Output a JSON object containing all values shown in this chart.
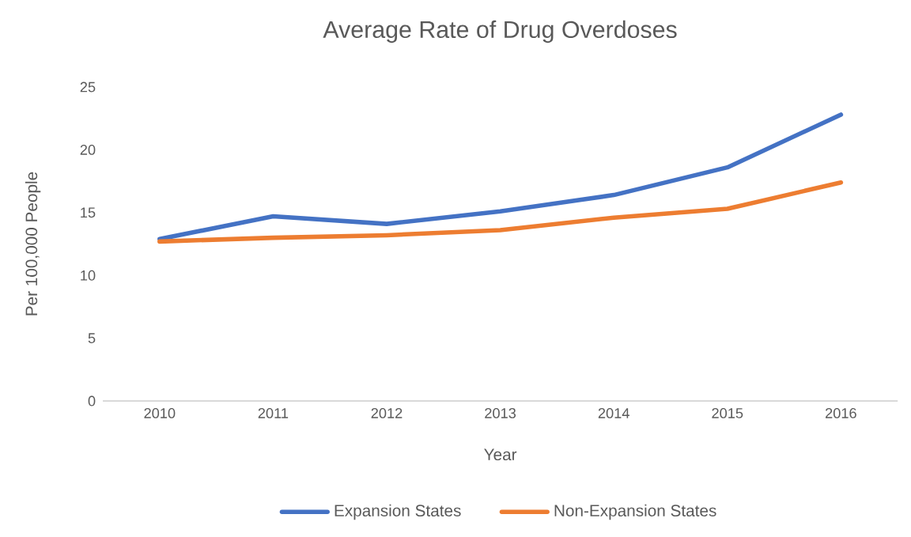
{
  "chart_data": {
    "type": "line",
    "title": "Average Rate of Drug Overdoses",
    "xlabel": "Year",
    "ylabel": "Per 100,000 People",
    "categories": [
      "2010",
      "2011",
      "2012",
      "2013",
      "2014",
      "2015",
      "2016"
    ],
    "series": [
      {
        "name": "Expansion States",
        "color": "#4472c4",
        "values": [
          12.9,
          14.7,
          14.1,
          15.1,
          16.4,
          18.6,
          22.8
        ]
      },
      {
        "name": "Non-Expansion States",
        "color": "#ed7d31",
        "values": [
          12.7,
          13.0,
          13.2,
          13.6,
          14.6,
          15.3,
          17.4
        ]
      }
    ],
    "ylim": [
      0,
      25
    ],
    "yticks": [
      0,
      5,
      10,
      15,
      20,
      25
    ],
    "grid": false,
    "legend": "bottom",
    "marker": "none",
    "line_style": "solid"
  }
}
